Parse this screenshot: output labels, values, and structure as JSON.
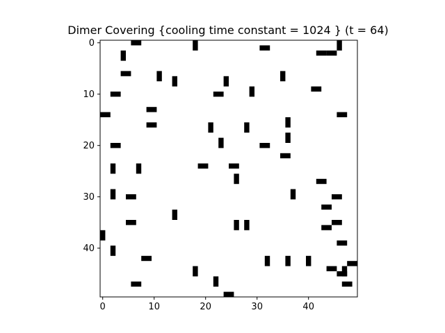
{
  "chart_data": {
    "type": "heatmap",
    "title": "Dimer Covering {cooling time constant = 1024 } (t = 64)",
    "xlabel": "",
    "ylabel": "",
    "grid_size": [
      50,
      50
    ],
    "xlim": [
      -0.5,
      49.5
    ],
    "ylim": [
      49.5,
      -0.5
    ],
    "y_inverted": true,
    "grid": false,
    "colors": {
      "dimer": "#000000",
      "empty": "#ffffff",
      "frame": "#000000"
    },
    "x_ticks": [
      0,
      10,
      20,
      30,
      40
    ],
    "y_ticks": [
      0,
      10,
      20,
      30,
      40
    ],
    "horizontal_dimers": [
      [
        6,
        0
      ],
      [
        31,
        1
      ],
      [
        42,
        2
      ],
      [
        44,
        2
      ],
      [
        4,
        6
      ],
      [
        2,
        10
      ],
      [
        22,
        10
      ],
      [
        41,
        9
      ],
      [
        0,
        14
      ],
      [
        9,
        13
      ],
      [
        46,
        14
      ],
      [
        9,
        16
      ],
      [
        2,
        20
      ],
      [
        31,
        20
      ],
      [
        35,
        22
      ],
      [
        19,
        24
      ],
      [
        25,
        24
      ],
      [
        42,
        27
      ],
      [
        5,
        30
      ],
      [
        45,
        30
      ],
      [
        43,
        32
      ],
      [
        5,
        35
      ],
      [
        45,
        35
      ],
      [
        43,
        36
      ],
      [
        46,
        39
      ],
      [
        8,
        42
      ],
      [
        48,
        43
      ],
      [
        44,
        44
      ],
      [
        46,
        45
      ],
      [
        6,
        47
      ],
      [
        47,
        47
      ],
      [
        24,
        49
      ]
    ],
    "vertical_dimers": [
      [
        18,
        0
      ],
      [
        46,
        0
      ],
      [
        4,
        2
      ],
      [
        11,
        6
      ],
      [
        14,
        7
      ],
      [
        24,
        7
      ],
      [
        35,
        6
      ],
      [
        29,
        9
      ],
      [
        21,
        16
      ],
      [
        28,
        16
      ],
      [
        36,
        15
      ],
      [
        36,
        18
      ],
      [
        23,
        19
      ],
      [
        26,
        26
      ],
      [
        2,
        24
      ],
      [
        7,
        24
      ],
      [
        2,
        29
      ],
      [
        37,
        29
      ],
      [
        14,
        33
      ],
      [
        26,
        35
      ],
      [
        28,
        35
      ],
      [
        0,
        37
      ],
      [
        2,
        40
      ],
      [
        32,
        42
      ],
      [
        36,
        42
      ],
      [
        40,
        42
      ],
      [
        47,
        44
      ],
      [
        18,
        44
      ],
      [
        22,
        46
      ]
    ]
  }
}
